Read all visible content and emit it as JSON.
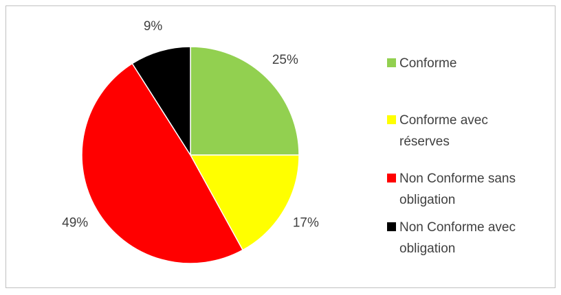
{
  "chart_data": {
    "type": "pie",
    "categories": [
      "Conforme",
      "Conforme avec réserves",
      "Non Conforme sans obligation",
      "Non Conforme avec obligation"
    ],
    "values": [
      25,
      17,
      49,
      9
    ],
    "value_labels": [
      "25%",
      "17%",
      "49%",
      "9%"
    ],
    "colors": [
      "#92d050",
      "#ffff00",
      "#ff0000",
      "#000000"
    ],
    "legend": "right"
  }
}
